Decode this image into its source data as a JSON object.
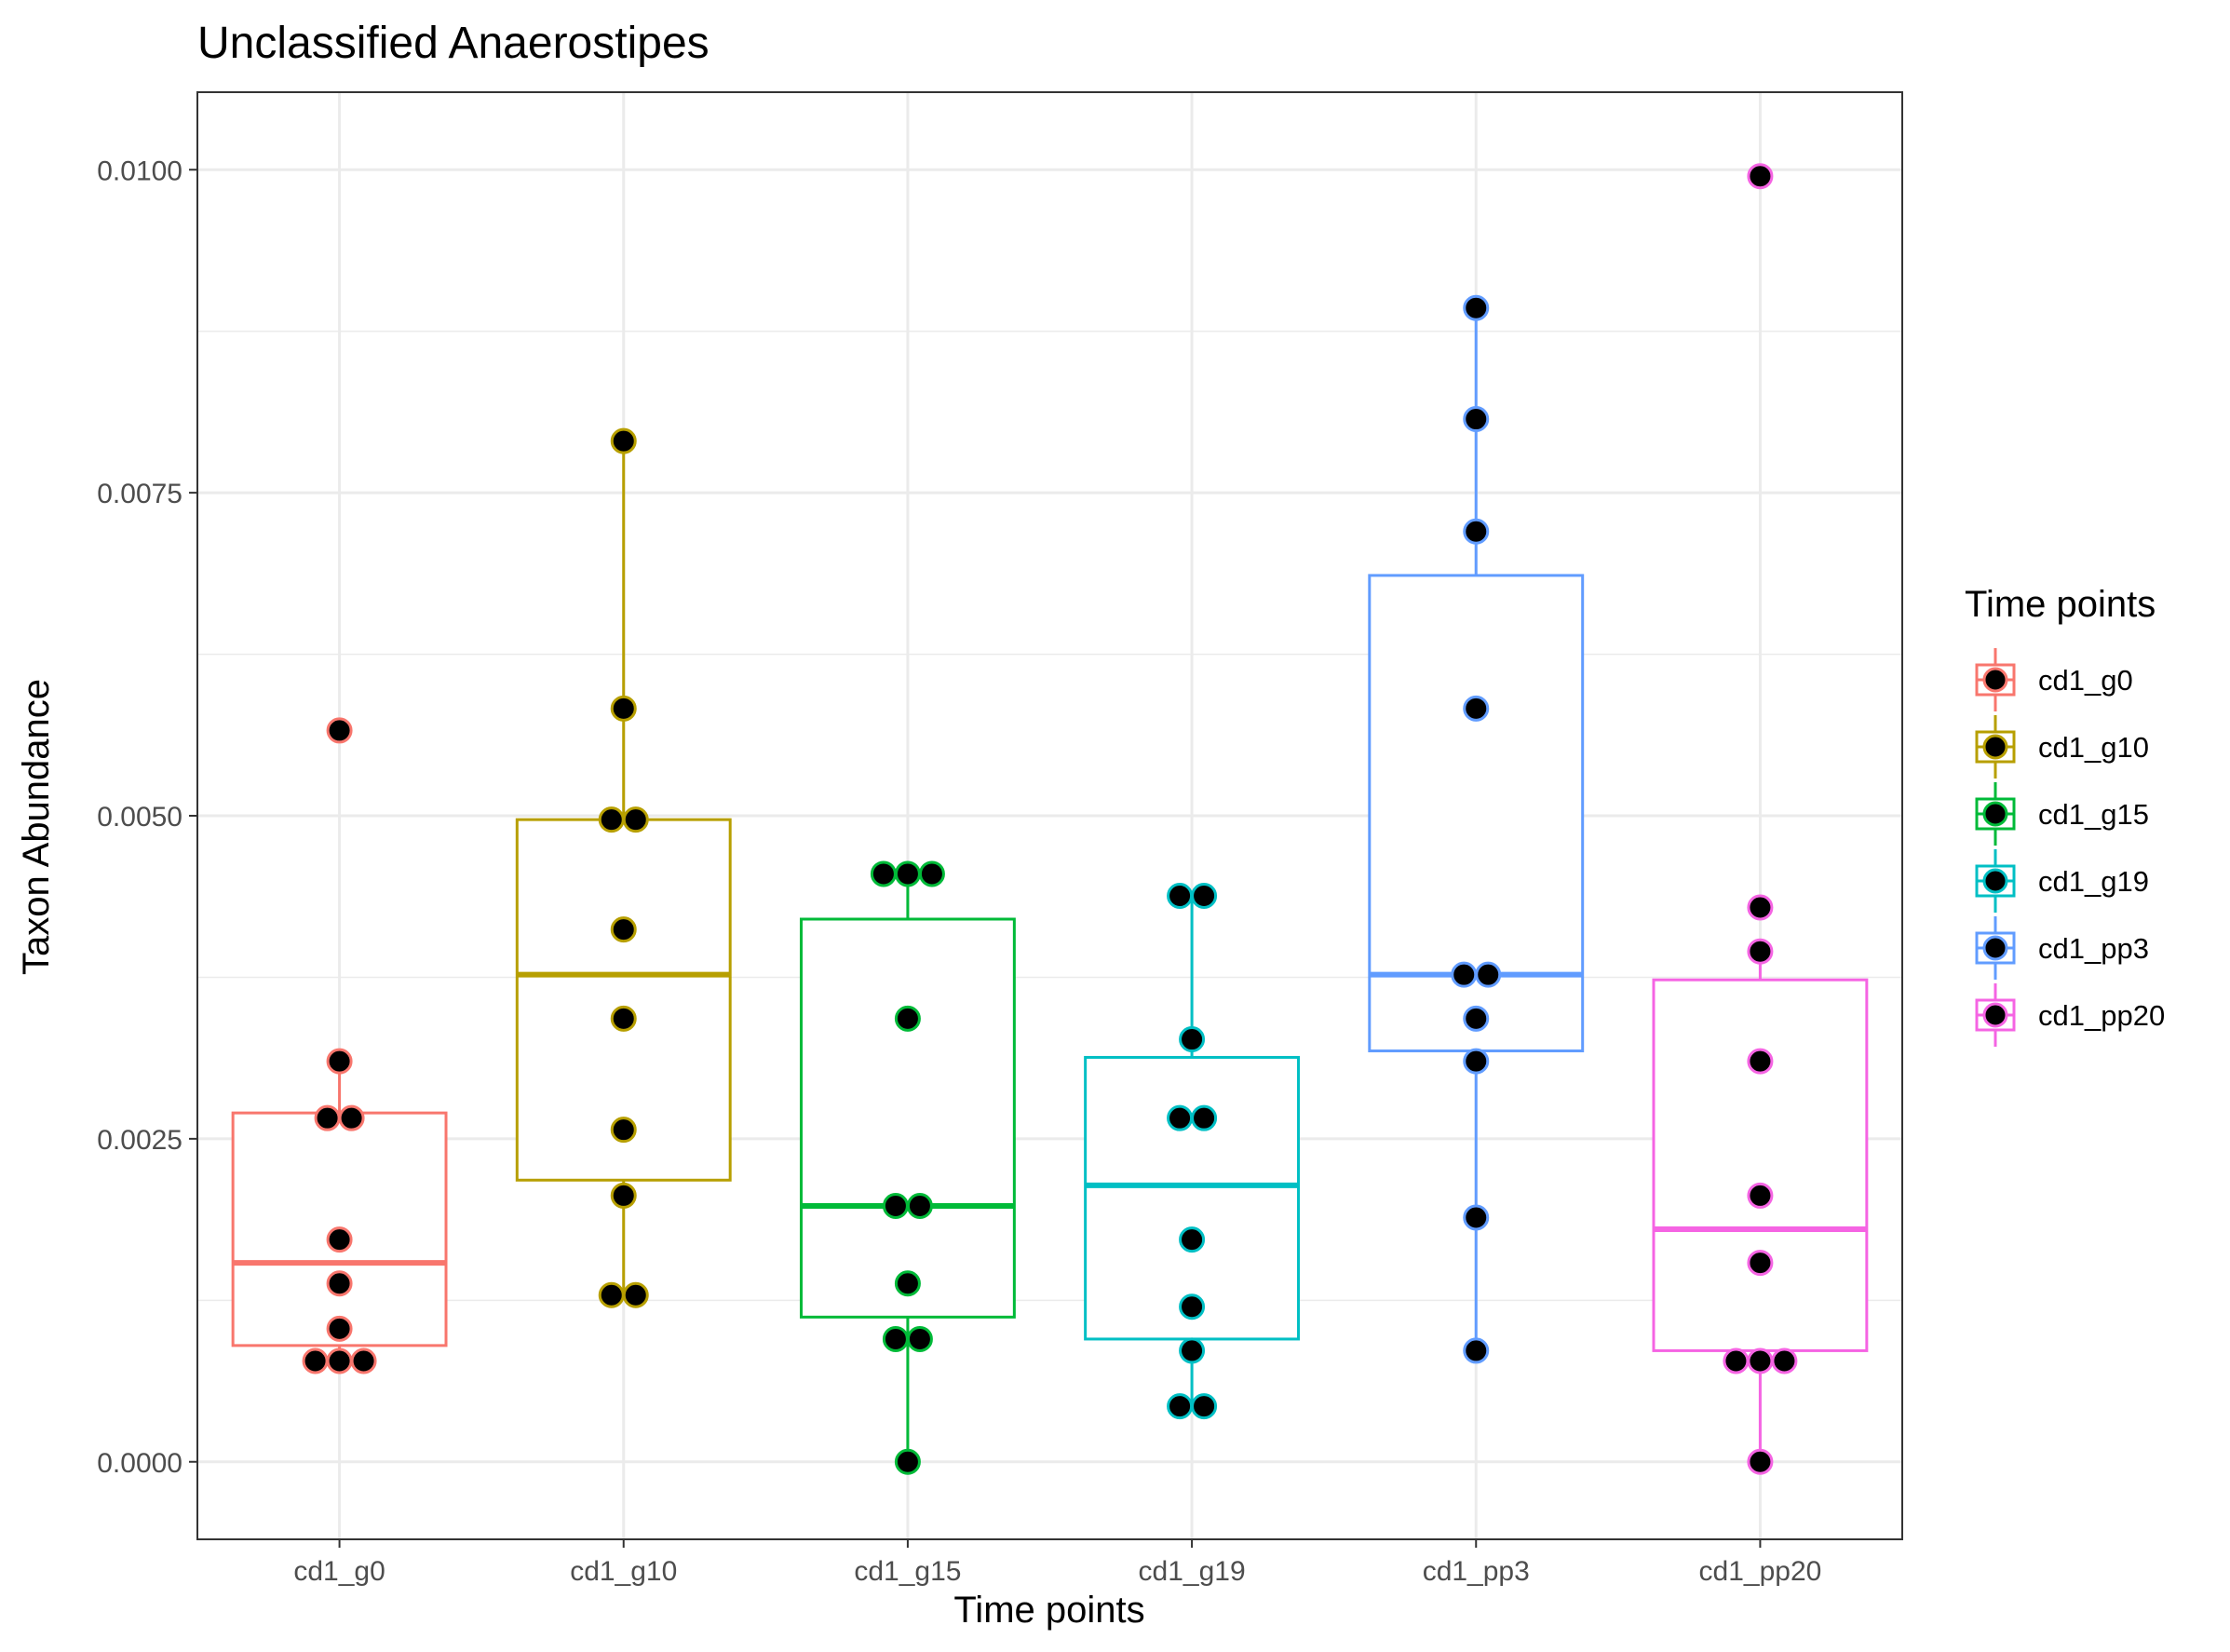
{
  "chart_data": {
    "type": "box",
    "title": "Unclassified  Anaerostipes",
    "xlabel": "Time points",
    "ylabel": "Taxon Abundance",
    "ylim": [
      -0.0006,
      0.0106
    ],
    "y_ticks": [
      0.0,
      0.0025,
      0.005,
      0.0075,
      0.01
    ],
    "y_tick_labels": [
      "0.0000",
      "0.0025",
      "0.0050",
      "0.0075",
      "0.0100"
    ],
    "grid": true,
    "legend": {
      "title": "Time points",
      "position": "right"
    },
    "categories": [
      "cd1_g0",
      "cd1_g10",
      "cd1_g15",
      "cd1_g19",
      "cd1_pp3",
      "cd1_pp20"
    ],
    "series": [
      {
        "name": "cd1_g0",
        "color": "#F8766D",
        "box": {
          "whisker_low": 0.00078,
          "q1": 0.0009,
          "median": 0.00154,
          "q3": 0.0027,
          "whisker_high": 0.0031
        },
        "points": [
          0.00566,
          0.0031,
          0.00266,
          0.00266,
          0.00172,
          0.00138,
          0.00103,
          0.00078,
          0.00078,
          0.00078
        ]
      },
      {
        "name": "cd1_g10",
        "color": "#B79F00",
        "box": {
          "whisker_low": 0.00129,
          "q1": 0.00218,
          "median": 0.00377,
          "q3": 0.00497,
          "whisker_high": 0.0079
        },
        "points": [
          0.0079,
          0.00583,
          0.00497,
          0.00497,
          0.00412,
          0.00343,
          0.00257,
          0.00206,
          0.00129,
          0.00129
        ]
      },
      {
        "name": "cd1_g15",
        "color": "#00BA38",
        "box": {
          "whisker_low": 0.0,
          "q1": 0.00112,
          "median": 0.00198,
          "q3": 0.0042,
          "whisker_high": 0.00455
        },
        "points": [
          0.00455,
          0.00455,
          0.00455,
          0.00343,
          0.00198,
          0.00198,
          0.00138,
          0.00095,
          0.00095,
          0.0
        ]
      },
      {
        "name": "cd1_g19",
        "color": "#00BFC4",
        "box": {
          "whisker_low": 0.00043,
          "q1": 0.00095,
          "median": 0.00214,
          "q3": 0.00313,
          "whisker_high": 0.00438
        },
        "points": [
          0.00438,
          0.00438,
          0.00327,
          0.00266,
          0.00266,
          0.00172,
          0.0012,
          0.00086,
          0.00043,
          0.00043
        ]
      },
      {
        "name": "cd1_pp3",
        "color": "#619CFF",
        "box": {
          "whisker_low": 0.00086,
          "q1": 0.00318,
          "median": 0.00377,
          "q3": 0.00686,
          "whisker_high": 0.00893
        },
        "points": [
          0.00893,
          0.00807,
          0.0072,
          0.00583,
          0.00377,
          0.00377,
          0.00343,
          0.0031,
          0.00189,
          0.00086
        ]
      },
      {
        "name": "cd1_pp20",
        "color": "#F564E3",
        "box": {
          "whisker_low": 0.0,
          "q1": 0.00086,
          "median": 0.0018,
          "q3": 0.00373,
          "whisker_high": 0.00395
        },
        "points": [
          0.00995,
          0.00429,
          0.00395,
          0.0031,
          0.00206,
          0.00154,
          0.00078,
          0.00078,
          0.00078,
          0.0
        ]
      }
    ]
  }
}
